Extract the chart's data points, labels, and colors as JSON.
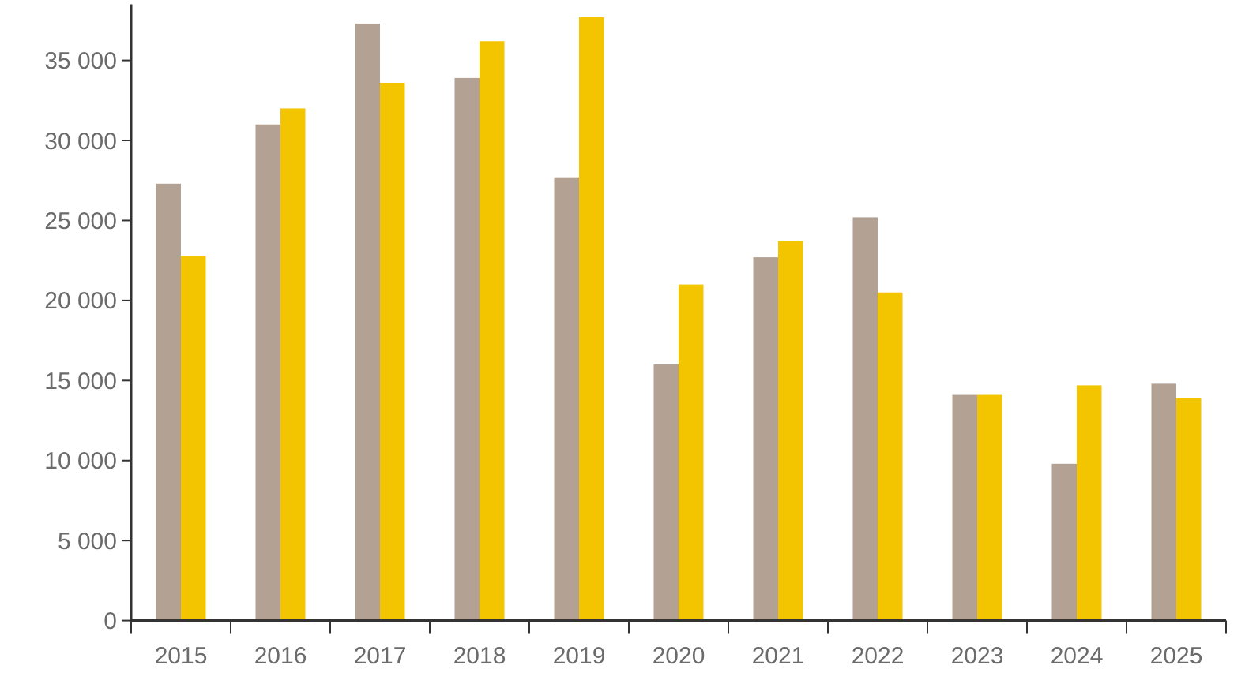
{
  "chart_data": {
    "type": "bar",
    "categories": [
      "2015",
      "2016",
      "2017",
      "2018",
      "2019",
      "2020",
      "2021",
      "2022",
      "2023",
      "2024",
      "2025"
    ],
    "series": [
      {
        "color": "#b3a193",
        "values": [
          27300,
          31000,
          37300,
          33900,
          27700,
          16000,
          22700,
          25200,
          14100,
          9800,
          14800
        ]
      },
      {
        "color": "#f2c500",
        "values": [
          22800,
          32000,
          33600,
          36200,
          37700,
          21000,
          23700,
          20500,
          14100,
          14700,
          13900
        ]
      }
    ],
    "ylim": [
      0,
      38500
    ],
    "yticks": [
      0,
      {
        "value": 5000,
        "label": "5 000"
      },
      {
        "value": 10000,
        "label": "10 000"
      },
      {
        "value": 15000,
        "label": "15 000"
      },
      {
        "value": 20000,
        "label": "20 000"
      },
      {
        "value": 25000,
        "label": "25 000"
      },
      {
        "value": 30000,
        "label": "30 000"
      },
      {
        "value": 35000,
        "label": "35 000"
      }
    ],
    "grid": false
  }
}
